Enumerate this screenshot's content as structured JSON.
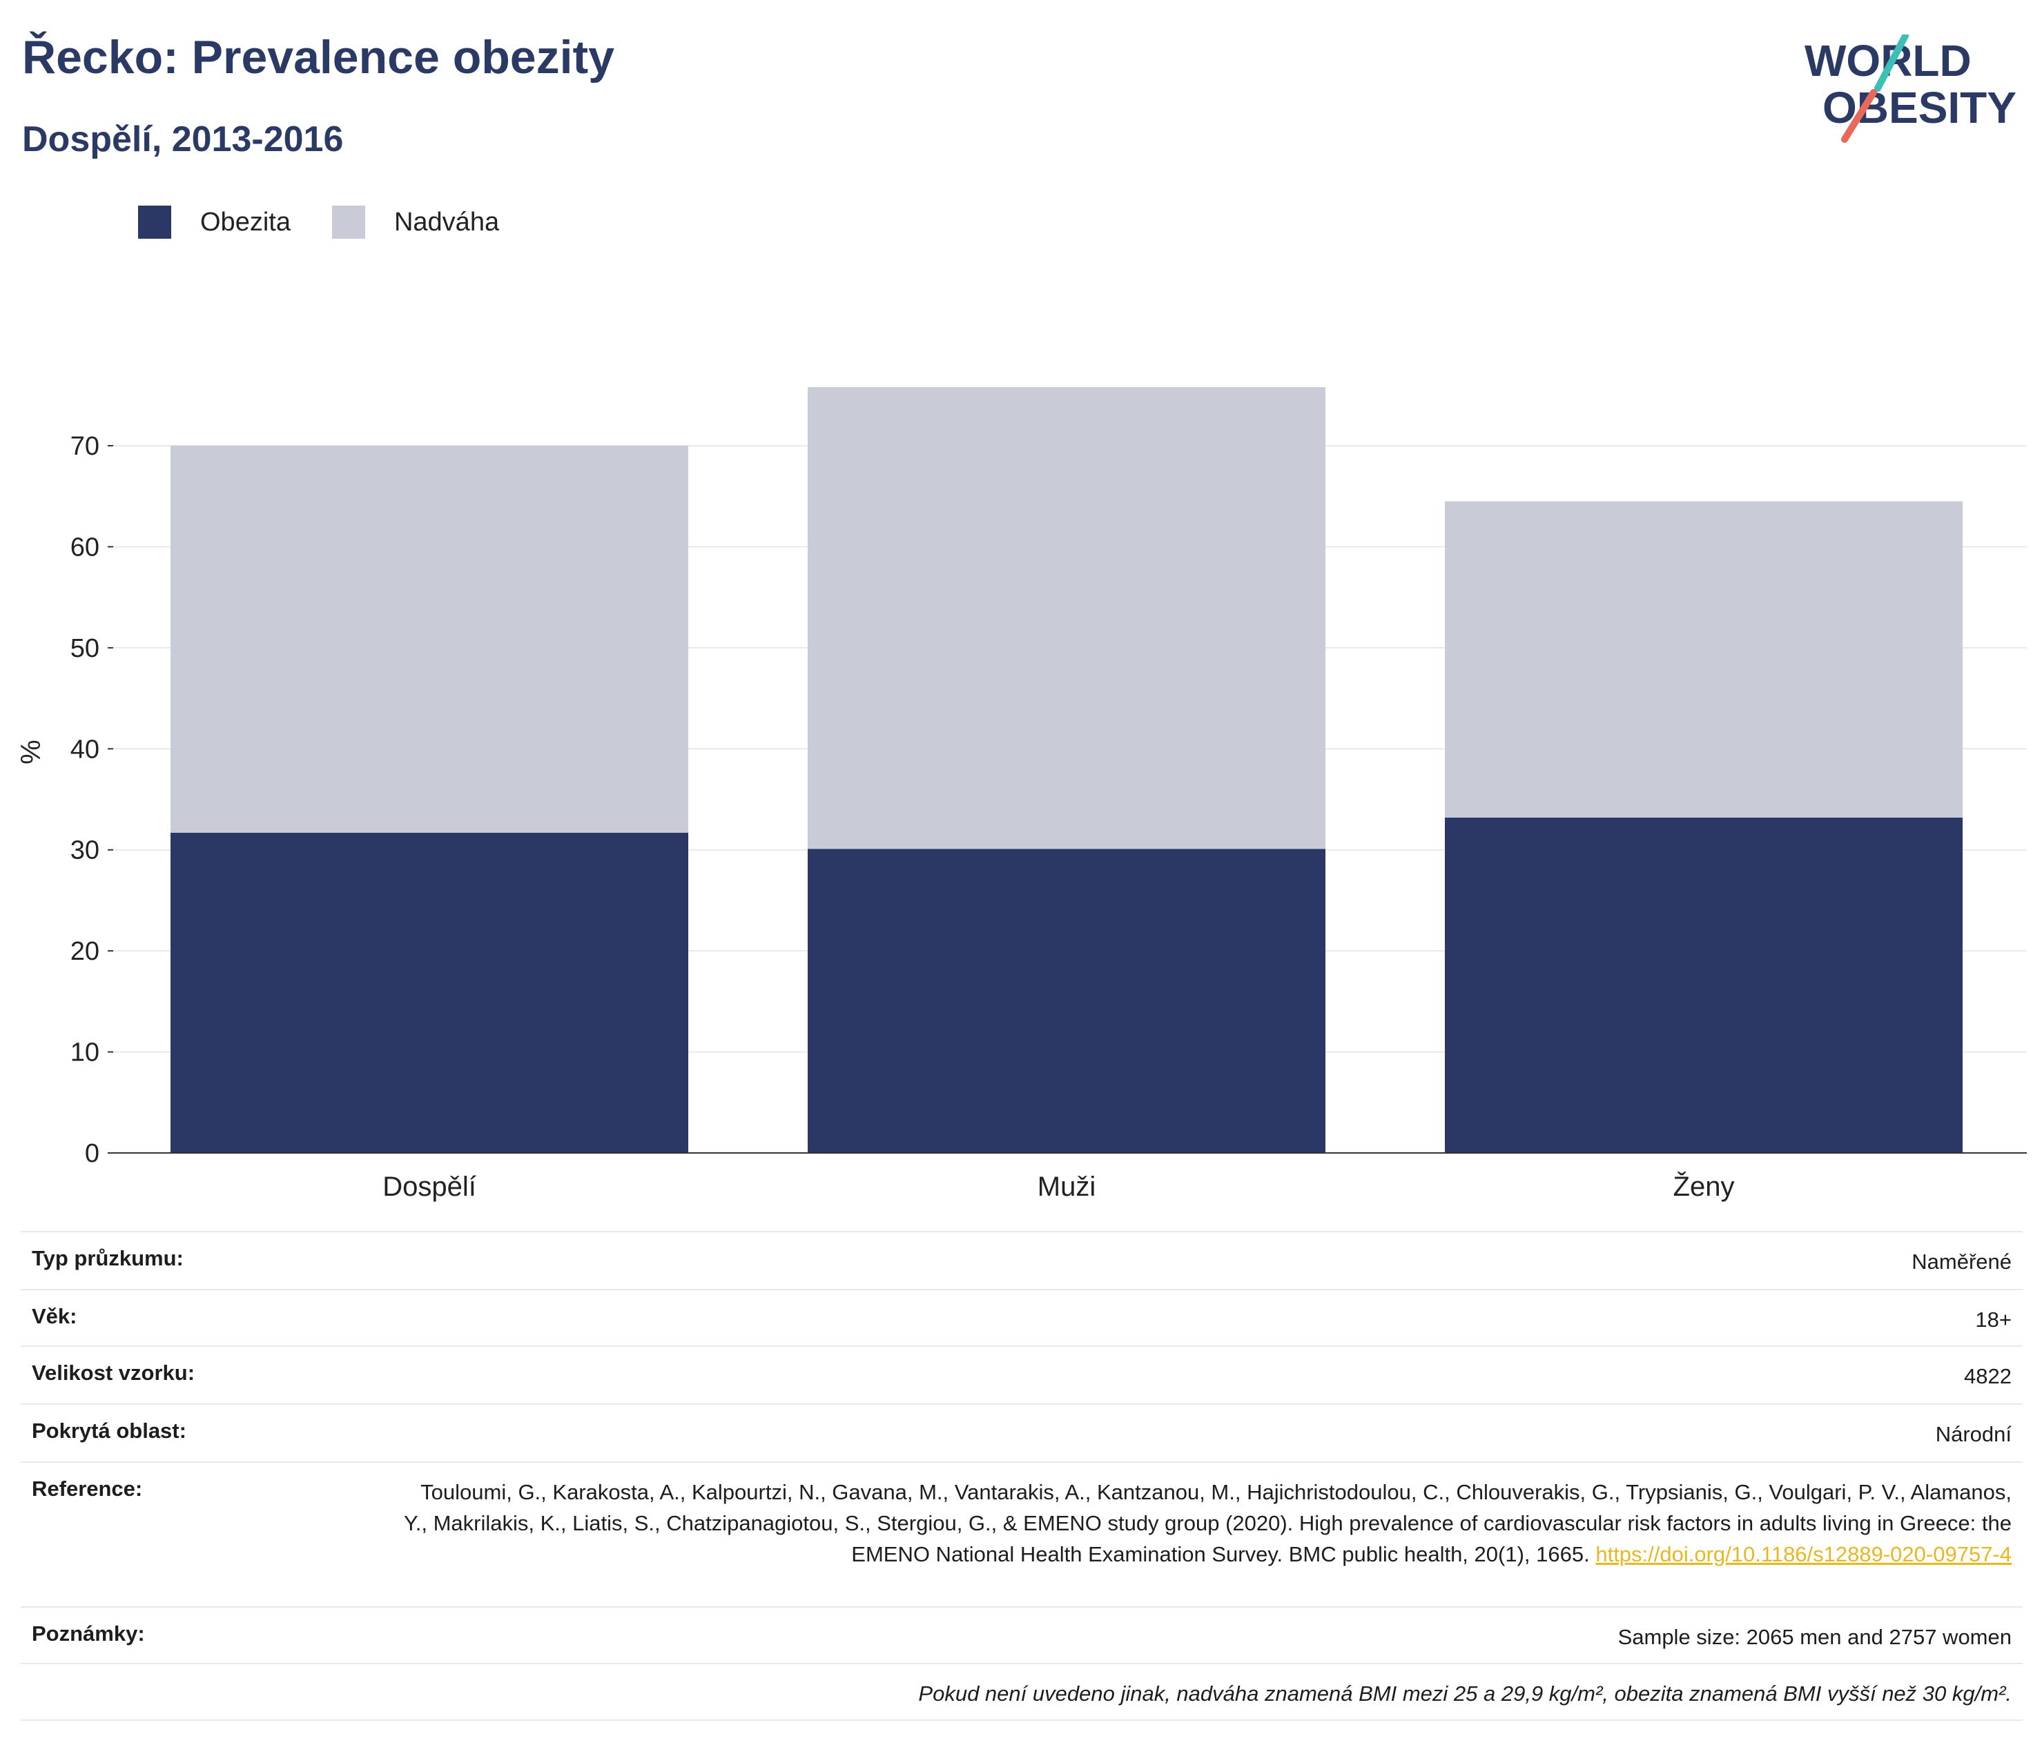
{
  "header": {
    "title": "Řecko: Prevalence obezity",
    "subtitle": "Dospělí, 2013-2016"
  },
  "logo": {
    "line1": "WORLD",
    "line2": "OBESITY",
    "text_color": "#2b3a64",
    "slash_top_color": "#3bbfb7",
    "slash_bottom_color": "#e8695a"
  },
  "chart_data": {
    "type": "bar",
    "stacked": true,
    "categories": [
      "Dospělí",
      "Muži",
      "Ženy"
    ],
    "series": [
      {
        "name": "Obezita",
        "color": "#2b3764",
        "values": [
          31.7,
          30.1,
          33.2
        ]
      },
      {
        "name": "Nadváha",
        "color": "#c9cbd7",
        "values": [
          38.3,
          45.7,
          31.3
        ]
      }
    ],
    "ylabel": "%",
    "ylim": [
      0,
      76
    ],
    "yticks": [
      0,
      10,
      20,
      30,
      40,
      50,
      60,
      70
    ],
    "grid": true,
    "legend_position": "top-left"
  },
  "info": {
    "rows": [
      {
        "label": "Typ průzkumu:",
        "value": "Naměřené"
      },
      {
        "label": "Věk:",
        "value": "18+"
      },
      {
        "label": "Velikost vzorku:",
        "value": "4822"
      },
      {
        "label": "Pokrytá oblast:",
        "value": "Národní"
      },
      {
        "label": "Reference:",
        "value": "Touloumi, G., Karakosta, A., Kalpourtzi, N., Gavana, M., Vantarakis, A., Kantzanou, M., Hajichristodoulou, C., Chlouverakis, G., Trypsianis, G., Voulgari, P. V., Alamanos, Y., Makrilakis, K., Liatis, S., Chatzipanagiotou, S., Stergiou, G., & EMENO study group (2020). High prevalence of cardiovascular risk factors in adults living in Greece: the EMENO National Health Examination Survey. BMC public health, 20(1), 1665.",
        "link": "https://doi.org/10.1186/s12889-020-09757-4"
      },
      {
        "label": "Poznámky:",
        "value": "Sample size: 2065 men and 2757 women"
      }
    ],
    "footnote": "Pokud není uvedeno jinak, nadváha znamená BMI mezi 25 a 29,9 kg/m², obezita znamená BMI vyšší než 30 kg/m²."
  }
}
